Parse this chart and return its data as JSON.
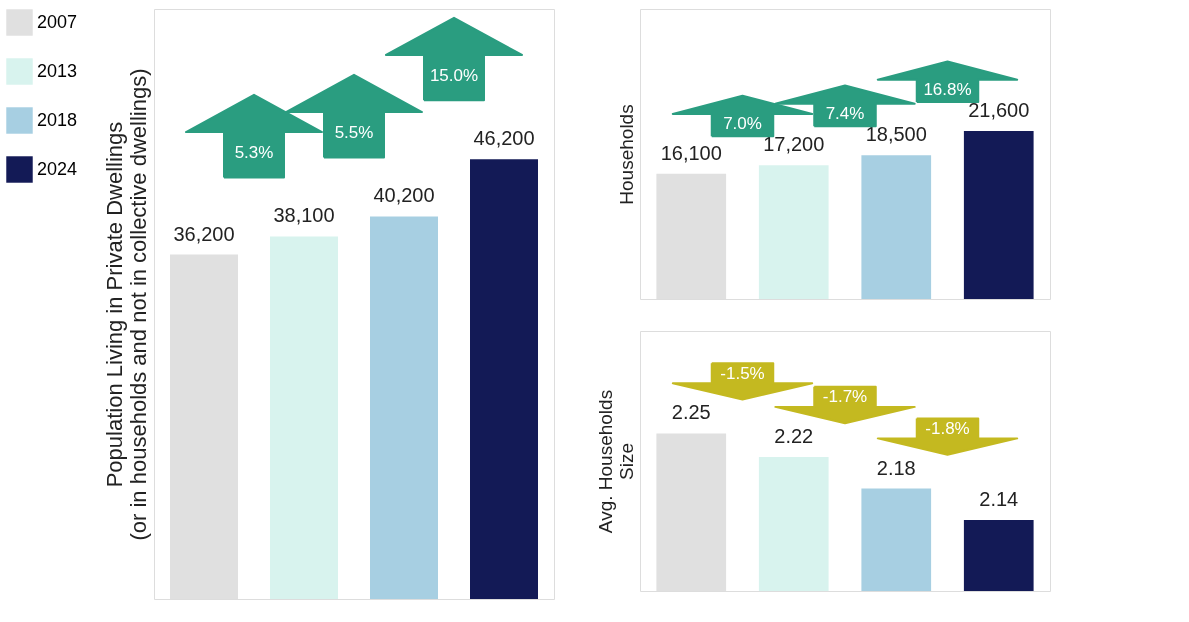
{
  "chart_data": [
    {
      "type": "bar",
      "stacked": true,
      "categories": [
        null,
        null,
        null,
        null
      ],
      "series": [
        {
          "name": "2007",
          "color": "#e0e0e0",
          "values": [
            36200,
            null,
            null,
            null
          ],
          "value_labels": [
            "36,200",
            null,
            null,
            null
          ]
        },
        {
          "name": "2013",
          "color": "#d8f3ee",
          "values": [
            null,
            38100,
            null,
            null
          ],
          "value_labels": [
            null,
            "38,100",
            null,
            null
          ]
        },
        {
          "name": "2018",
          "color": "#a7cfe2",
          "values": [
            null,
            null,
            40200,
            null
          ],
          "value_labels": [
            null,
            null,
            "40,200",
            null
          ]
        },
        {
          "name": "2024",
          "color": "#131a56",
          "values": [
            null,
            null,
            null,
            46200
          ],
          "value_labels": [
            null,
            null,
            null,
            "46,200"
          ]
        }
      ],
      "ylabel": "Population Living in Private Dwellings\n(or in households and not in collective dwellings)",
      "ylim": [
        0,
        62000
      ],
      "tick_labels": false,
      "legend": "left",
      "annotations": [
        "5.3%",
        "5.5%",
        "15.0%"
      ]
    },
    {
      "type": "bar",
      "stacked": true,
      "categories": [
        null,
        null,
        null,
        null
      ],
      "series": [
        {
          "color": "#e0e0e0",
          "values": [
            16100,
            null,
            null,
            null
          ],
          "value_labels": [
            "16,100",
            null,
            null,
            null
          ]
        },
        {
          "color": "#d8f3ee",
          "values": [
            null,
            17200,
            null,
            null
          ],
          "value_labels": [
            null,
            "17,200",
            null,
            null
          ]
        },
        {
          "color": "#a7cfe2",
          "values": [
            null,
            null,
            18500,
            null
          ],
          "value_labels": [
            null,
            null,
            "18,500",
            null
          ]
        },
        {
          "color": "#131a56",
          "values": [
            null,
            null,
            null,
            21600
          ],
          "value_labels": [
            null,
            null,
            null,
            "21,600"
          ]
        }
      ],
      "ylabel": "Households",
      "ylim": [
        0,
        37300
      ],
      "tick_labels": false,
      "annotations": [
        "7.0%",
        "7.4%",
        "16.8%"
      ]
    },
    {
      "type": "bar",
      "stacked": true,
      "categories": [
        null,
        null,
        null,
        null
      ],
      "series": [
        {
          "color": "#e0e0e0",
          "values": [
            2.25,
            null,
            null,
            null
          ],
          "value_labels": [
            "2.25",
            null,
            null,
            null
          ]
        },
        {
          "color": "#d8f3ee",
          "values": [
            null,
            2.22,
            null,
            null
          ],
          "value_labels": [
            null,
            "2.22",
            null,
            null
          ]
        },
        {
          "color": "#a7cfe2",
          "values": [
            null,
            null,
            2.18,
            null
          ],
          "value_labels": [
            null,
            null,
            "2.18",
            null
          ]
        },
        {
          "color": "#131a56",
          "values": [
            null,
            null,
            null,
            2.14
          ],
          "value_labels": [
            null,
            null,
            null,
            "2.14"
          ]
        }
      ],
      "ylabel": "Avg. Households\nSize",
      "ylim": [
        2.05,
        2.38
      ],
      "tick_labels": false,
      "annotations": [
        "-1.5%",
        "-1.7%",
        "-1.8%"
      ]
    }
  ]
}
